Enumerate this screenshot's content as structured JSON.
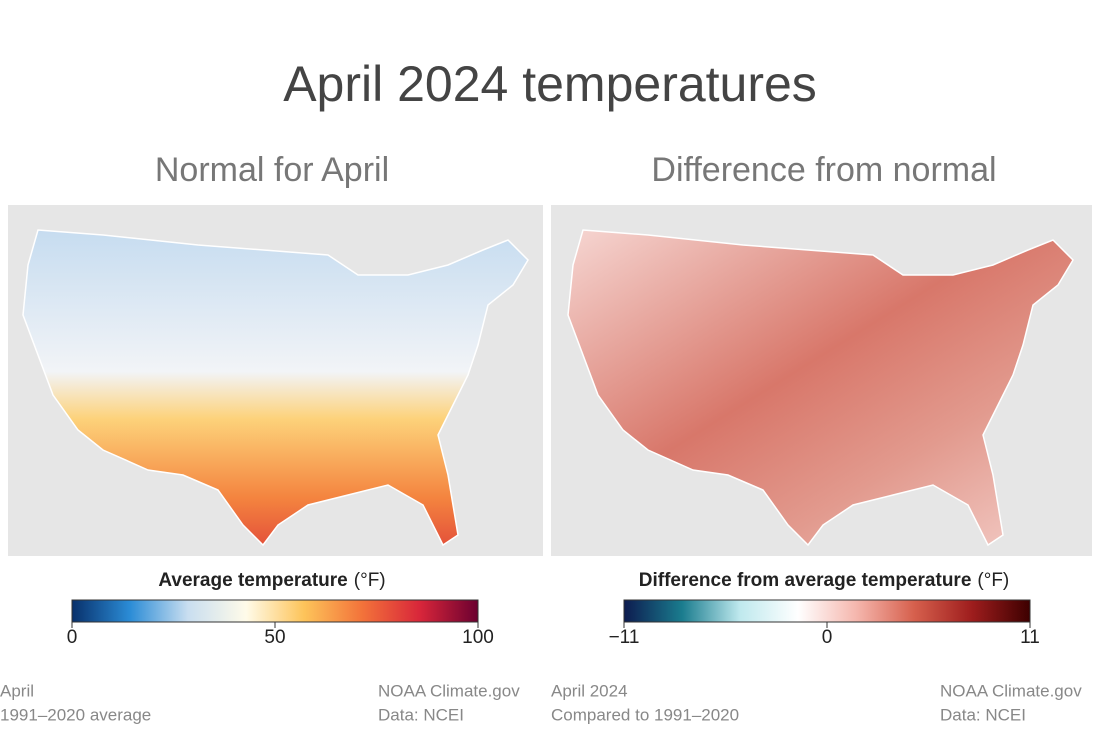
{
  "title": "April 2024 temperatures",
  "panels": [
    {
      "subtitle": "Normal for April",
      "legend_title": "Average temperature",
      "legend_unit": "(°F)",
      "xlim": [
        0,
        100
      ],
      "xticks": [
        0,
        50,
        100
      ],
      "colors": [
        "#08306b",
        "#2b8cd6",
        "#c9def0",
        "#fffbe9",
        "#fdc45a",
        "#f3733a",
        "#d8263a",
        "#6b0030"
      ],
      "notes_left": [
        "April",
        "1991–2020 average"
      ],
      "notes_right": [
        "NOAA Climate.gov",
        "Data: NCEI"
      ]
    },
    {
      "subtitle": "Difference from normal",
      "legend_title": "Difference from average temperature",
      "legend_unit": "(°F)",
      "xlim": [
        -11,
        11
      ],
      "xticks": [
        {
          "value": -11,
          "label": "−11"
        },
        0,
        11
      ],
      "colors": [
        "#0d1b4f",
        "#1a7c8e",
        "#bfe9ee",
        "#ffffff",
        "#f5b7ae",
        "#d6604d",
        "#9e1d1d",
        "#3d0000"
      ],
      "notes_left": [
        "April 2024",
        "Compared to 1991–2020"
      ],
      "notes_right": [
        "NOAA Climate.gov",
        "Data: NCEI"
      ]
    }
  ]
}
